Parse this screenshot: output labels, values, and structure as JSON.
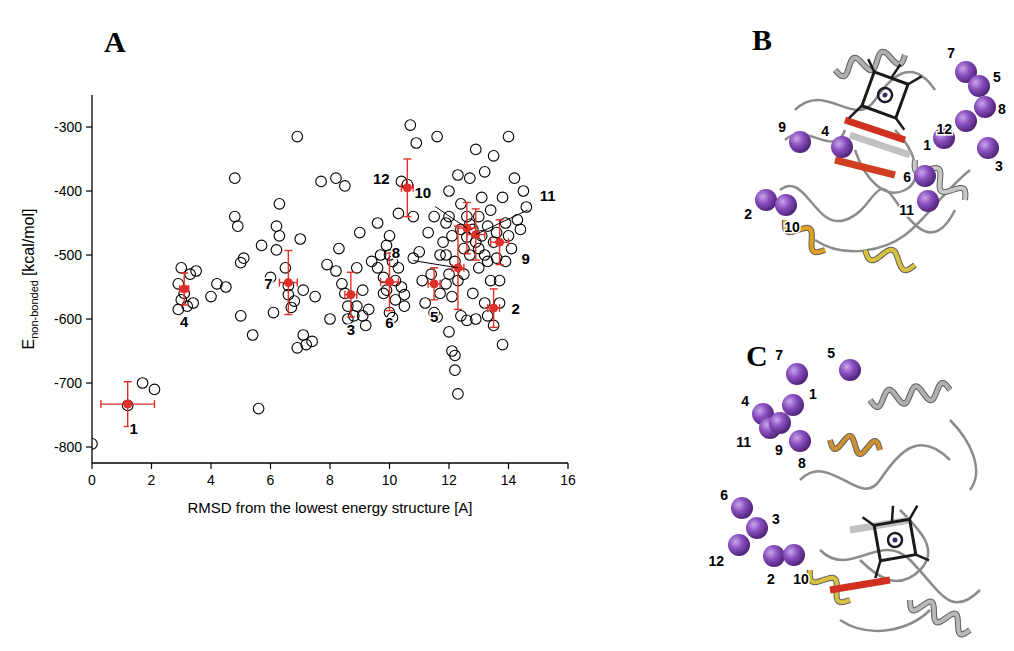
{
  "chart_data": {
    "type": "scatter",
    "panel": "A",
    "x_label": "RMSD from the lowest energy structure [A]",
    "y_label": {
      "main": "E",
      "sub": "non-bonded",
      "unit": "[kcal/mol]"
    },
    "xlim": [
      0,
      16
    ],
    "ylim": [
      -825,
      -250
    ],
    "xticks": [
      0,
      2,
      4,
      6,
      8,
      10,
      12,
      14,
      16
    ],
    "yticks": [
      -800,
      -700,
      -600,
      -500,
      -400,
      -300
    ],
    "marker": "open-circle",
    "color": "#000000",
    "x": [
      0,
      1.7,
      2.1,
      1.2,
      3.0,
      3.3,
      2.9,
      3.0,
      3.2,
      3.4,
      2.9,
      3.5,
      3.1,
      4.0,
      4.2,
      4.5,
      4.8,
      4.8,
      4.9,
      5.0,
      5.1,
      5.0,
      5.4,
      5.6,
      5.7,
      6.0,
      6.1,
      6.3,
      6.3,
      6.2,
      6.2,
      6.5,
      6.6,
      6.6,
      6.8,
      6.7,
      6.9,
      6.9,
      7.0,
      7.1,
      7.1,
      7.4,
      7.5,
      7.7,
      7.9,
      8.2,
      8.2,
      8.3,
      8.4,
      8.5,
      8.5,
      8.6,
      8.6,
      8.8,
      8.9,
      8.9,
      9.0,
      9.1,
      9.1,
      9.3,
      9.4,
      9.6,
      9.6,
      9.7,
      9.8,
      9.8,
      9.9,
      9.9,
      10.0,
      10.0,
      10.0,
      10.1,
      10.1,
      10.2,
      10.2,
      10.3,
      10.3,
      10.4,
      10.4,
      10.5,
      10.5,
      10.6,
      10.7,
      10.8,
      10.8,
      10.9,
      11.0,
      11.1,
      11.2,
      11.3,
      11.4,
      11.5,
      11.5,
      11.6,
      11.6,
      11.7,
      11.7,
      11.8,
      11.9,
      11.9,
      12.0,
      12.0,
      12.0,
      12.1,
      12.1,
      12.1,
      12.2,
      12.2,
      12.3,
      12.2,
      12.3,
      12.3,
      12.4,
      12.4,
      12.4,
      12.5,
      12.5,
      12.6,
      12.6,
      12.6,
      12.7,
      12.7,
      12.7,
      12.8,
      12.8,
      12.9,
      12.9,
      13.0,
      13.0,
      13.1,
      13.1,
      13.2,
      13.2,
      13.2,
      13.3,
      13.3,
      13.4,
      13.4,
      13.5,
      13.5,
      13.5,
      13.6,
      13.7,
      13.7,
      13.8,
      13.8,
      13.9,
      13.9,
      14.0,
      14.0,
      14.1,
      14.2,
      14.3,
      14.4,
      14.5,
      14.6,
      13.6,
      13.0,
      12.9,
      8.0,
      7.2,
      9.2,
      11.9,
      13.3,
      12.0
    ],
    "values": [
      -795,
      -700,
      -710,
      -735,
      -520,
      -530,
      -545,
      -570,
      -580,
      -575,
      -585,
      -525,
      -560,
      -565,
      -545,
      -550,
      -380,
      -440,
      -455,
      -595,
      -505,
      -512,
      -625,
      -740,
      -485,
      -535,
      -590,
      -420,
      -470,
      -455,
      -492,
      -520,
      -548,
      -562,
      -572,
      -582,
      -315,
      -645,
      -475,
      -625,
      -555,
      -635,
      -565,
      -385,
      -515,
      -525,
      -380,
      -490,
      -545,
      -392,
      -560,
      -580,
      -600,
      -595,
      -520,
      -580,
      -465,
      -555,
      -595,
      -585,
      -510,
      -520,
      -450,
      -500,
      -535,
      -560,
      -485,
      -555,
      -470,
      -500,
      -590,
      -510,
      -598,
      -540,
      -570,
      -435,
      -520,
      -385,
      -550,
      -562,
      -580,
      -390,
      -297,
      -505,
      -440,
      -325,
      -495,
      -540,
      -575,
      -465,
      -530,
      -440,
      -590,
      -597,
      -315,
      -500,
      -560,
      -480,
      -450,
      -545,
      -400,
      -440,
      -620,
      -470,
      -565,
      -650,
      -680,
      -657,
      -717,
      -510,
      -540,
      -375,
      -420,
      -460,
      -595,
      -490,
      -530,
      -440,
      -472,
      -602,
      -452,
      -380,
      -500,
      -460,
      -560,
      -335,
      -480,
      -440,
      -520,
      -470,
      -410,
      -370,
      -500,
      -575,
      -455,
      -595,
      -430,
      -540,
      -345,
      -480,
      -610,
      -465,
      -540,
      -575,
      -640,
      -410,
      -450,
      -510,
      -315,
      -470,
      -490,
      -380,
      -445,
      -460,
      -400,
      -425,
      -505,
      -490,
      -600,
      -600,
      -640,
      -610,
      -500,
      -510,
      -530
    ],
    "clusters": {
      "color": "#e0302a",
      "labels": [
        "1",
        "2",
        "3",
        "4",
        "5",
        "6",
        "7",
        "8",
        "9",
        "10",
        "11",
        "12"
      ],
      "x": [
        1.2,
        13.5,
        8.7,
        3.1,
        11.5,
        10.0,
        6.6,
        12.3,
        13.7,
        12.6,
        12.9,
        10.6
      ],
      "y": [
        -733,
        -583,
        -562,
        -553,
        -545,
        -542,
        -543,
        -520,
        -480,
        -458,
        -468,
        -395
      ],
      "xerr": [
        0.9,
        0.2,
        0.2,
        0.15,
        0.2,
        0.3,
        0.3,
        0.2,
        0.3,
        0.3,
        0.3,
        0.2
      ],
      "yerr": [
        35,
        30,
        35,
        25,
        25,
        45,
        50,
        65,
        35,
        40,
        40,
        45
      ]
    }
  },
  "structures": [
    {
      "panel": "B",
      "spheres": [
        "7",
        "5",
        "8",
        "12",
        "3",
        "1",
        "6",
        "11",
        "4",
        "9",
        "2",
        "10"
      ]
    },
    {
      "panel": "C",
      "spheres": [
        "7",
        "5",
        "4",
        "1",
        "11",
        "9",
        "8",
        "6",
        "3",
        "12",
        "2",
        "10"
      ]
    }
  ]
}
